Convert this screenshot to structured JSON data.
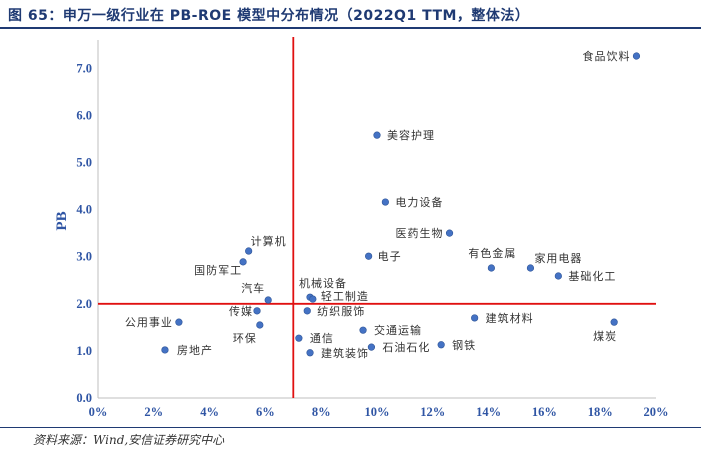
{
  "title": "图 65：申万一级行业在 PB-ROE 模型中分布情况（2022Q1 TTM，整体法）",
  "source": "资料来源：Wind,安信证券研究中心",
  "chart_data": {
    "type": "scatter",
    "title": "图 65：申万一级行业在 PB-ROE 模型中分布情况（2022Q1 TTM，整体法）",
    "xlabel": "",
    "ylabel": "PB",
    "xlim": [
      0,
      20
    ],
    "ylim": [
      0,
      7.6
    ],
    "grid": false,
    "x_ticks": [
      0,
      2,
      4,
      6,
      8,
      10,
      12,
      14,
      16,
      18,
      20
    ],
    "x_tick_labels": [
      "0%",
      "2%",
      "4%",
      "6%",
      "8%",
      "10%",
      "12%",
      "14%",
      "16%",
      "18%",
      "20%"
    ],
    "y_ticks": [
      0,
      1,
      2,
      3,
      4,
      5,
      6,
      7
    ],
    "y_tick_labels": [
      "0.0",
      "1.0",
      "2.0",
      "3.0",
      "4.0",
      "5.0",
      "6.0",
      "7.0"
    ],
    "reference_lines": {
      "x": 7.0,
      "y": 2.0
    },
    "points": [
      {
        "label": "食品饮料",
        "x": 19.3,
        "y": 7.26
      },
      {
        "label": "美容护理",
        "x": 10.0,
        "y": 5.58
      },
      {
        "label": "电力设备",
        "x": 10.3,
        "y": 4.16
      },
      {
        "label": "医药生物",
        "x": 12.6,
        "y": 3.5
      },
      {
        "label": "电子",
        "x": 9.7,
        "y": 3.01
      },
      {
        "label": "有色金属",
        "x": 14.1,
        "y": 2.76
      },
      {
        "label": "家用电器",
        "x": 15.5,
        "y": 2.76
      },
      {
        "label": "基础化工",
        "x": 16.5,
        "y": 2.59
      },
      {
        "label": "计算机",
        "x": 5.4,
        "y": 3.12
      },
      {
        "label": "国防军工",
        "x": 5.2,
        "y": 2.89
      },
      {
        "label": "汽车",
        "x": 6.1,
        "y": 2.08
      },
      {
        "label": "机械设备",
        "x": 7.6,
        "y": 2.14
      },
      {
        "label": "轻工制造",
        "x": 7.7,
        "y": 2.1
      },
      {
        "label": "纺织服饰",
        "x": 7.5,
        "y": 1.85
      },
      {
        "label": "公用事业",
        "x": 2.9,
        "y": 1.61
      },
      {
        "label": "传媒",
        "x": 5.7,
        "y": 1.85
      },
      {
        "label": "环保",
        "x": 5.8,
        "y": 1.55
      },
      {
        "label": "房地产",
        "x": 2.4,
        "y": 1.02
      },
      {
        "label": "通信",
        "x": 7.2,
        "y": 1.27
      },
      {
        "label": "建筑装饰",
        "x": 7.6,
        "y": 0.96
      },
      {
        "label": "交通运输",
        "x": 9.5,
        "y": 1.44
      },
      {
        "label": "石油石化",
        "x": 9.8,
        "y": 1.08
      },
      {
        "label": "钢铁",
        "x": 12.3,
        "y": 1.13
      },
      {
        "label": "建筑材料",
        "x": 13.5,
        "y": 1.7
      },
      {
        "label": "煤炭",
        "x": 18.5,
        "y": 1.61
      }
    ],
    "colors": {
      "title": "#1F3A73",
      "axis_text": "#2F55A4",
      "axis_line": "#BFBFBF",
      "point": "#4472C4",
      "point_edge": "#2F5597",
      "reference_line": "#E01010"
    }
  }
}
